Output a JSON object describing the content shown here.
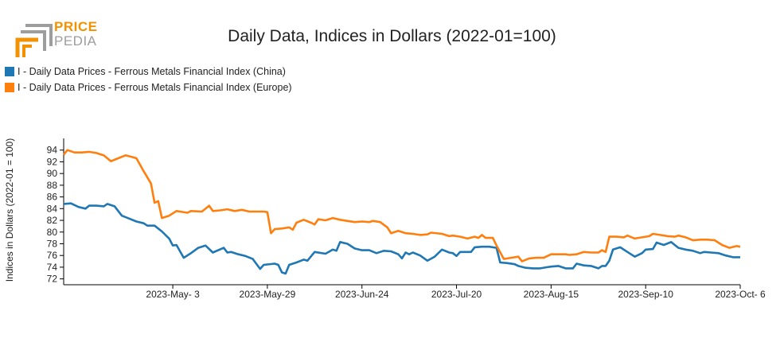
{
  "logo": {
    "line1": "PRICE",
    "line2": "PEDIA"
  },
  "colors": {
    "china": "#1f77b4",
    "europe": "#ff7f0e",
    "axis": "#000000",
    "logo_orange": "#f39200",
    "logo_gray": "#9d9d9c"
  },
  "chart_data": {
    "type": "line",
    "title": "Daily Data, Indices in Dollars (2022-01=100)",
    "ylabel": "Indices in Dollars (2022-01 = 100)",
    "xlabel": "",
    "ylim": [
      71,
      96
    ],
    "y_ticks": [
      72,
      74,
      76,
      78,
      80,
      82,
      84,
      86,
      88,
      90,
      92,
      94
    ],
    "x_range": [
      "2023-04-03",
      "2023-10-06"
    ],
    "x_ticks": [
      {
        "date": "2023-05-03",
        "label": "2023-May- 3"
      },
      {
        "date": "2023-05-29",
        "label": "2023-May-29"
      },
      {
        "date": "2023-06-24",
        "label": "2023-Jun-24"
      },
      {
        "date": "2023-07-20",
        "label": "2023-Jul-20"
      },
      {
        "date": "2023-08-15",
        "label": "2023-Aug-15"
      },
      {
        "date": "2023-09-10",
        "label": "2023-Sep-10"
      },
      {
        "date": "2023-10-06",
        "label": "2023-Oct- 6"
      }
    ],
    "legend_position": "top-left",
    "grid": false,
    "series": [
      {
        "name": "I - Daily Data Prices - Ferrous Metals Financial Index (China)",
        "color": "#1f77b4",
        "points": [
          [
            "2023-04-03",
            84.8
          ],
          [
            "2023-04-05",
            84.9
          ],
          [
            "2023-04-07",
            84.3
          ],
          [
            "2023-04-09",
            84.0
          ],
          [
            "2023-04-10",
            84.5
          ],
          [
            "2023-04-12",
            84.5
          ],
          [
            "2023-04-14",
            84.4
          ],
          [
            "2023-04-15",
            84.8
          ],
          [
            "2023-04-17",
            84.4
          ],
          [
            "2023-04-19",
            82.8
          ],
          [
            "2023-04-21",
            82.3
          ],
          [
            "2023-04-23",
            81.8
          ],
          [
            "2023-04-25",
            81.5
          ],
          [
            "2023-04-26",
            81.1
          ],
          [
            "2023-04-28",
            81.1
          ],
          [
            "2023-04-30",
            80.1
          ],
          [
            "2023-05-02",
            78.9
          ],
          [
            "2023-05-03",
            77.7
          ],
          [
            "2023-05-04",
            77.8
          ],
          [
            "2023-05-06",
            75.6
          ],
          [
            "2023-05-08",
            76.4
          ],
          [
            "2023-05-10",
            77.3
          ],
          [
            "2023-05-12",
            77.7
          ],
          [
            "2023-05-14",
            76.5
          ],
          [
            "2023-05-17",
            77.3
          ],
          [
            "2023-05-18",
            76.5
          ],
          [
            "2023-05-19",
            76.6
          ],
          [
            "2023-05-21",
            76.2
          ],
          [
            "2023-05-23",
            75.9
          ],
          [
            "2023-05-25",
            75.4
          ],
          [
            "2023-05-27",
            73.7
          ],
          [
            "2023-05-28",
            74.4
          ],
          [
            "2023-05-31",
            74.6
          ],
          [
            "2023-06-01",
            74.4
          ],
          [
            "2023-06-02",
            73.1
          ],
          [
            "2023-06-03",
            72.9
          ],
          [
            "2023-06-04",
            74.4
          ],
          [
            "2023-06-06",
            74.8
          ],
          [
            "2023-06-08",
            75.3
          ],
          [
            "2023-06-09",
            75.1
          ],
          [
            "2023-06-11",
            76.6
          ],
          [
            "2023-06-14",
            76.3
          ],
          [
            "2023-06-16",
            77.0
          ],
          [
            "2023-06-17",
            76.8
          ],
          [
            "2023-06-18",
            78.3
          ],
          [
            "2023-06-20",
            78.0
          ],
          [
            "2023-06-22",
            77.2
          ],
          [
            "2023-06-24",
            76.9
          ],
          [
            "2023-06-26",
            76.9
          ],
          [
            "2023-06-28",
            76.4
          ],
          [
            "2023-06-30",
            76.8
          ],
          [
            "2023-07-02",
            76.7
          ],
          [
            "2023-07-04",
            76.2
          ],
          [
            "2023-07-05",
            75.5
          ],
          [
            "2023-07-06",
            76.5
          ],
          [
            "2023-07-07",
            76.2
          ],
          [
            "2023-07-08",
            76.5
          ],
          [
            "2023-07-10",
            76.0
          ],
          [
            "2023-07-12",
            75.1
          ],
          [
            "2023-07-14",
            75.8
          ],
          [
            "2023-07-16",
            77.0
          ],
          [
            "2023-07-18",
            76.5
          ],
          [
            "2023-07-19",
            76.4
          ],
          [
            "2023-07-20",
            75.9
          ],
          [
            "2023-07-21",
            76.6
          ],
          [
            "2023-07-24",
            76.6
          ],
          [
            "2023-07-25",
            77.4
          ],
          [
            "2023-07-27",
            77.5
          ],
          [
            "2023-07-29",
            77.5
          ],
          [
            "2023-07-31",
            77.3
          ],
          [
            "2023-08-01",
            74.8
          ],
          [
            "2023-08-03",
            74.7
          ],
          [
            "2023-08-05",
            74.5
          ],
          [
            "2023-08-06",
            74.2
          ],
          [
            "2023-08-08",
            73.9
          ],
          [
            "2023-08-10",
            73.8
          ],
          [
            "2023-08-12",
            73.8
          ],
          [
            "2023-08-14",
            74.0
          ],
          [
            "2023-08-15",
            74.1
          ],
          [
            "2023-08-17",
            74.2
          ],
          [
            "2023-08-19",
            73.8
          ],
          [
            "2023-08-21",
            73.8
          ],
          [
            "2023-08-22",
            74.6
          ],
          [
            "2023-08-24",
            74.3
          ],
          [
            "2023-08-26",
            74.2
          ],
          [
            "2023-08-28",
            73.8
          ],
          [
            "2023-08-29",
            74.2
          ],
          [
            "2023-08-30",
            74.2
          ],
          [
            "2023-08-31",
            75.1
          ],
          [
            "2023-09-01",
            77.0
          ],
          [
            "2023-09-03",
            77.4
          ],
          [
            "2023-09-05",
            76.6
          ],
          [
            "2023-09-07",
            75.8
          ],
          [
            "2023-09-09",
            76.4
          ],
          [
            "2023-09-10",
            77.0
          ],
          [
            "2023-09-12",
            77.1
          ],
          [
            "2023-09-13",
            78.2
          ],
          [
            "2023-09-15",
            77.8
          ],
          [
            "2023-09-17",
            78.3
          ],
          [
            "2023-09-19",
            77.3
          ],
          [
            "2023-09-21",
            77.0
          ],
          [
            "2023-09-23",
            76.8
          ],
          [
            "2023-09-25",
            76.4
          ],
          [
            "2023-09-26",
            76.6
          ],
          [
            "2023-09-28",
            76.5
          ],
          [
            "2023-09-30",
            76.4
          ],
          [
            "2023-10-02",
            76.0
          ],
          [
            "2023-10-04",
            75.7
          ],
          [
            "2023-10-06",
            75.7
          ]
        ]
      },
      {
        "name": "I - Daily Data Prices - Ferrous Metals Financial Index (Europe)",
        "color": "#ff7f0e",
        "points": [
          [
            "2023-04-03",
            93.2
          ],
          [
            "2023-04-04",
            94.0
          ],
          [
            "2023-04-06",
            93.6
          ],
          [
            "2023-04-08",
            93.6
          ],
          [
            "2023-04-10",
            93.7
          ],
          [
            "2023-04-12",
            93.5
          ],
          [
            "2023-04-14",
            93.1
          ],
          [
            "2023-04-16",
            92.1
          ],
          [
            "2023-04-18",
            92.6
          ],
          [
            "2023-04-20",
            93.1
          ],
          [
            "2023-04-22",
            92.8
          ],
          [
            "2023-04-23",
            92.6
          ],
          [
            "2023-04-25",
            90.4
          ],
          [
            "2023-04-27",
            88.3
          ],
          [
            "2023-04-28",
            85.0
          ],
          [
            "2023-04-29",
            85.3
          ],
          [
            "2023-04-30",
            82.4
          ],
          [
            "2023-05-02",
            82.8
          ],
          [
            "2023-05-04",
            83.6
          ],
          [
            "2023-05-05",
            83.5
          ],
          [
            "2023-05-07",
            83.3
          ],
          [
            "2023-05-08",
            83.6
          ],
          [
            "2023-05-11",
            83.5
          ],
          [
            "2023-05-13",
            84.5
          ],
          [
            "2023-05-14",
            83.6
          ],
          [
            "2023-05-16",
            83.7
          ],
          [
            "2023-05-18",
            83.9
          ],
          [
            "2023-05-20",
            83.6
          ],
          [
            "2023-05-22",
            83.8
          ],
          [
            "2023-05-24",
            83.5
          ],
          [
            "2023-05-26",
            83.5
          ],
          [
            "2023-05-28",
            83.5
          ],
          [
            "2023-05-29",
            83.4
          ],
          [
            "2023-05-30",
            79.8
          ],
          [
            "2023-05-31",
            80.5
          ],
          [
            "2023-06-02",
            80.6
          ],
          [
            "2023-06-04",
            80.8
          ],
          [
            "2023-06-05",
            80.4
          ],
          [
            "2023-06-06",
            81.6
          ],
          [
            "2023-06-08",
            82.1
          ],
          [
            "2023-06-10",
            81.6
          ],
          [
            "2023-06-11",
            81.3
          ],
          [
            "2023-06-12",
            82.2
          ],
          [
            "2023-06-14",
            82.0
          ],
          [
            "2023-06-16",
            82.4
          ],
          [
            "2023-06-18",
            82.1
          ],
          [
            "2023-06-20",
            81.9
          ],
          [
            "2023-06-22",
            81.7
          ],
          [
            "2023-06-24",
            81.8
          ],
          [
            "2023-06-26",
            81.7
          ],
          [
            "2023-06-27",
            81.9
          ],
          [
            "2023-06-29",
            81.7
          ],
          [
            "2023-07-01",
            80.8
          ],
          [
            "2023-07-02",
            79.8
          ],
          [
            "2023-07-04",
            80.2
          ],
          [
            "2023-07-06",
            79.8
          ],
          [
            "2023-07-08",
            79.7
          ],
          [
            "2023-07-10",
            79.5
          ],
          [
            "2023-07-12",
            79.6
          ],
          [
            "2023-07-13",
            79.9
          ],
          [
            "2023-07-16",
            79.7
          ],
          [
            "2023-07-18",
            79.3
          ],
          [
            "2023-07-19",
            79.4
          ],
          [
            "2023-07-21",
            79.2
          ],
          [
            "2023-07-23",
            78.9
          ],
          [
            "2023-07-25",
            79.2
          ],
          [
            "2023-07-26",
            79.0
          ],
          [
            "2023-07-27",
            79.5
          ],
          [
            "2023-07-28",
            79.0
          ],
          [
            "2023-07-30",
            79.0
          ],
          [
            "2023-07-31",
            77.7
          ],
          [
            "2023-08-02",
            75.4
          ],
          [
            "2023-08-04",
            75.6
          ],
          [
            "2023-08-06",
            75.8
          ],
          [
            "2023-08-07",
            75.0
          ],
          [
            "2023-08-09",
            75.5
          ],
          [
            "2023-08-11",
            75.6
          ],
          [
            "2023-08-13",
            75.6
          ],
          [
            "2023-08-15",
            76.2
          ],
          [
            "2023-08-17",
            76.2
          ],
          [
            "2023-08-19",
            76.2
          ],
          [
            "2023-08-20",
            76.1
          ],
          [
            "2023-08-22",
            76.2
          ],
          [
            "2023-08-24",
            76.6
          ],
          [
            "2023-08-26",
            76.5
          ],
          [
            "2023-08-28",
            76.5
          ],
          [
            "2023-08-29",
            76.9
          ],
          [
            "2023-08-30",
            76.6
          ],
          [
            "2023-08-31",
            79.2
          ],
          [
            "2023-09-02",
            79.2
          ],
          [
            "2023-09-04",
            79.1
          ],
          [
            "2023-09-05",
            79.4
          ],
          [
            "2023-09-07",
            78.9
          ],
          [
            "2023-09-09",
            79.1
          ],
          [
            "2023-09-11",
            79.3
          ],
          [
            "2023-09-12",
            79.7
          ],
          [
            "2023-09-14",
            79.5
          ],
          [
            "2023-09-16",
            79.3
          ],
          [
            "2023-09-18",
            79.2
          ],
          [
            "2023-09-19",
            79.4
          ],
          [
            "2023-09-21",
            79.1
          ],
          [
            "2023-09-23",
            78.6
          ],
          [
            "2023-09-25",
            78.7
          ],
          [
            "2023-09-27",
            78.7
          ],
          [
            "2023-09-29",
            78.6
          ],
          [
            "2023-10-01",
            77.8
          ],
          [
            "2023-10-03",
            77.3
          ],
          [
            "2023-10-05",
            77.6
          ],
          [
            "2023-10-06",
            77.5
          ]
        ]
      }
    ]
  }
}
